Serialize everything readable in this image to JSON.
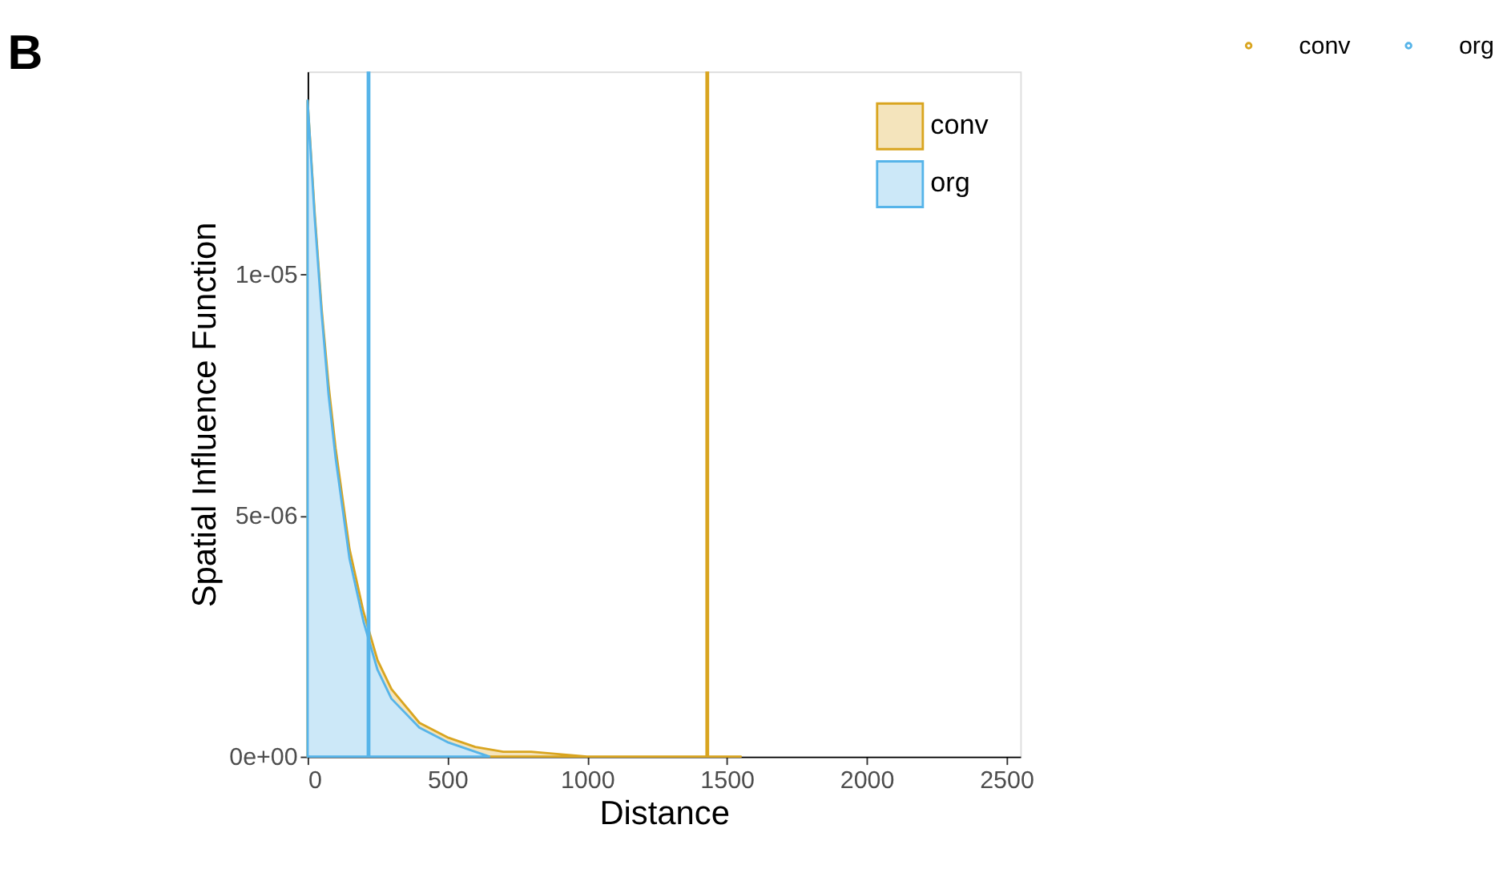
{
  "chart_data": {
    "type": "area",
    "title": "B",
    "xlabel": "Distance",
    "ylabel": "Spatial Influence Function",
    "series": [
      {
        "name": "conv",
        "color": "#d9a520",
        "x": [
          0,
          25,
          50,
          75,
          100,
          150,
          200,
          250,
          300,
          400,
          500,
          600,
          700,
          800,
          1000,
          1200,
          1550
        ],
        "values": [
          1.36e-05,
          1.13e-05,
          9.3e-06,
          7.7e-06,
          6.4e-06,
          4.3e-06,
          3e-06,
          2e-06,
          1.4e-06,
          7e-07,
          4e-07,
          2e-07,
          1e-07,
          1e-07,
          0,
          0,
          0
        ]
      },
      {
        "name": "org",
        "color": "#56b4e9",
        "x": [
          0,
          25,
          50,
          75,
          100,
          150,
          200,
          250,
          300,
          400,
          500,
          600,
          650
        ],
        "values": [
          1.36e-05,
          1.12e-05,
          9.2e-06,
          7.5e-06,
          6.2e-06,
          4.1e-06,
          2.8e-06,
          1.8e-06,
          1.2e-06,
          6e-07,
          3e-07,
          1e-07,
          0
        ]
      }
    ],
    "ref_lines": [
      {
        "axis": "x",
        "value": 1430,
        "label": "conv",
        "color": "#d9a520"
      },
      {
        "axis": "x",
        "value": 218,
        "label": "org",
        "color": "#56b4e9"
      }
    ],
    "xlim": [
      0,
      2550
    ],
    "xticks": [
      0,
      500,
      1000,
      1500,
      2000,
      2500
    ],
    "ylim": [
      0,
      1.42e-05
    ],
    "yticks": [
      {
        "value": 0,
        "label": "0e+00"
      },
      {
        "value": 5e-06,
        "label": "5e-06"
      },
      {
        "value": 1e-05,
        "label": "1e-05"
      }
    ],
    "grid": false,
    "legend": "top right"
  }
}
